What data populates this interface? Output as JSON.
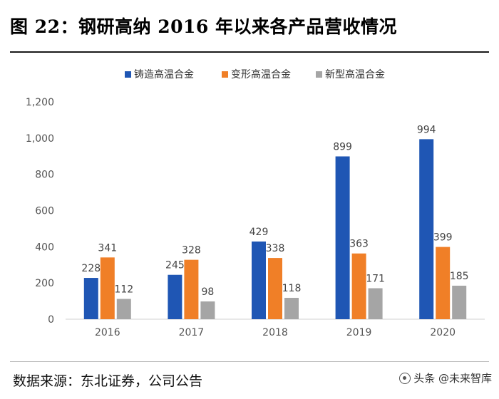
{
  "figure_title": "图 22：钢研高纳 2016 年以来各产品营收情况",
  "source_note": "数据来源：东北证券，公司公告",
  "watermark": "头条 @未来智库",
  "chart_data": {
    "type": "bar",
    "categories": [
      "2016",
      "2017",
      "2018",
      "2019",
      "2020"
    ],
    "series": [
      {
        "name": "铸造高温合金",
        "color": "#1f56b4",
        "values": [
          228,
          245,
          429,
          899,
          994
        ]
      },
      {
        "name": "变形高温合金",
        "color": "#f07f27",
        "values": [
          341,
          328,
          338,
          363,
          399
        ]
      },
      {
        "name": "新型高温合金",
        "color": "#a5a5a5",
        "values": [
          112,
          98,
          118,
          171,
          185
        ]
      }
    ],
    "ylim": [
      0,
      1200
    ],
    "yticks": [
      0,
      200,
      400,
      600,
      800,
      1000,
      1200
    ],
    "ytick_labels": [
      "0",
      "200",
      "400",
      "600",
      "800",
      "1,000",
      "1,200"
    ],
    "legend_position": "top",
    "gridlines": false,
    "xlabel": "",
    "ylabel": ""
  }
}
